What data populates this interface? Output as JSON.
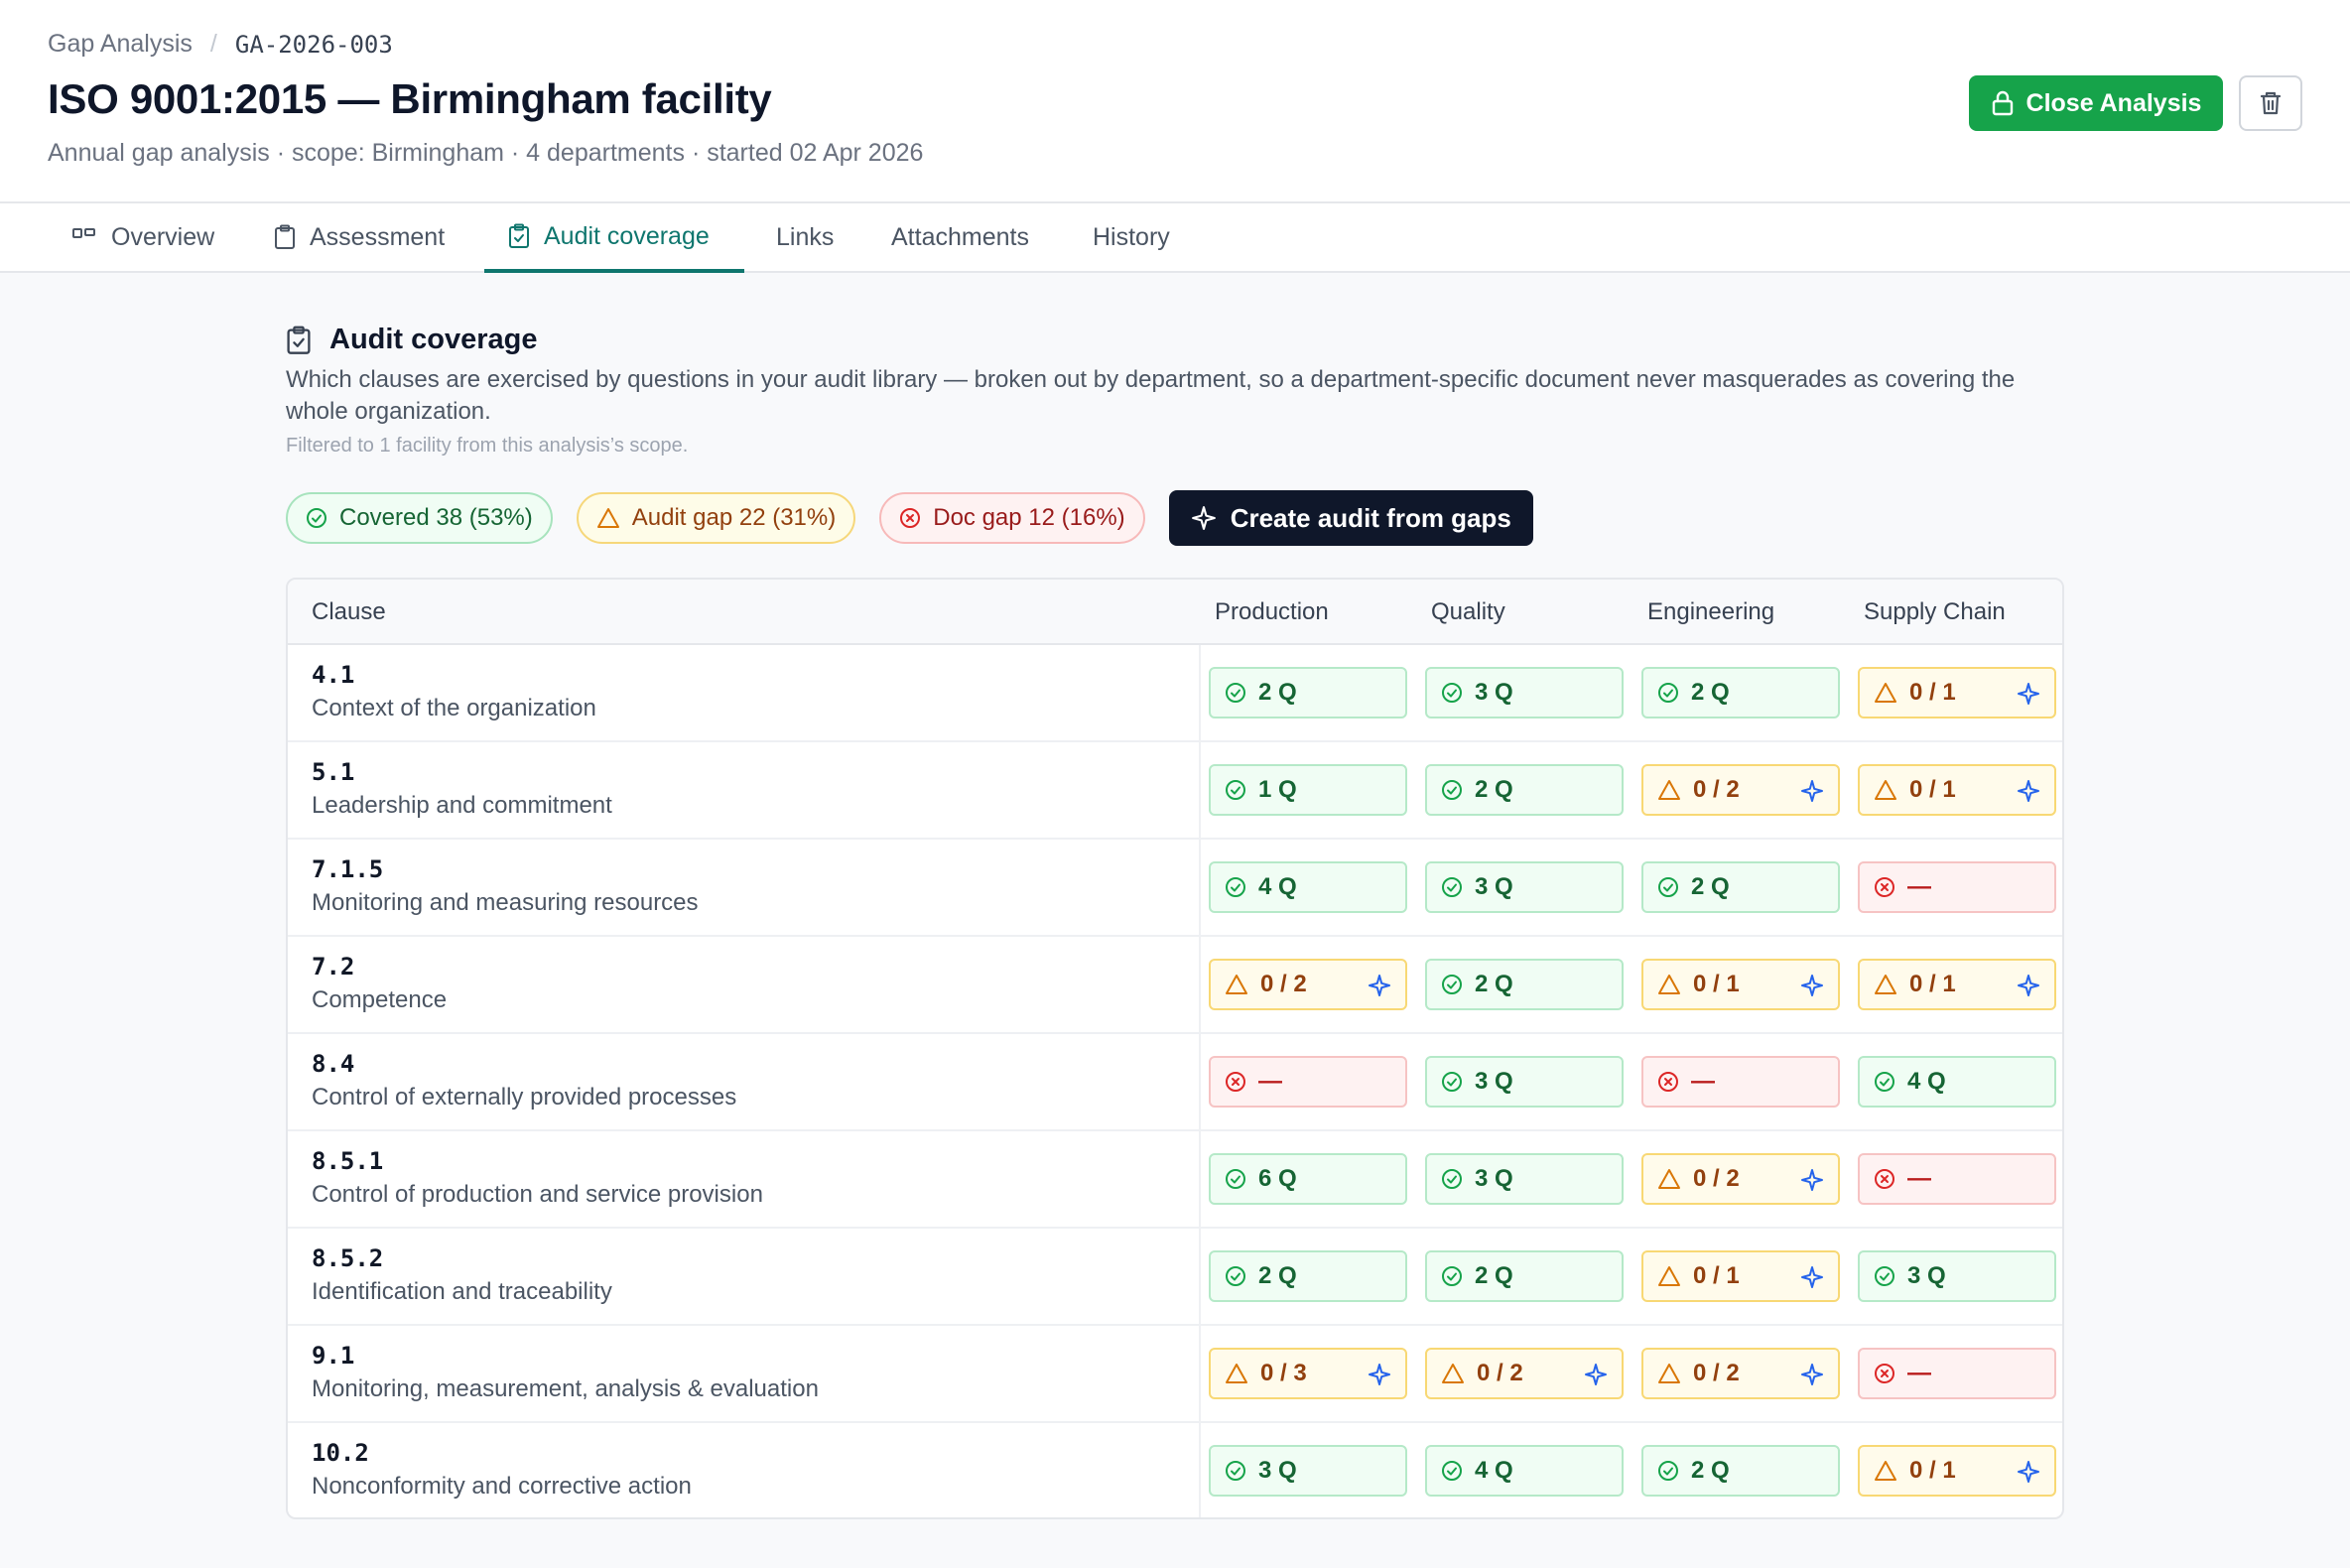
{
  "breadcrumb": {
    "parent": "Gap Analysis",
    "current": "GA-2026-003"
  },
  "header": {
    "title": "ISO 9001:2015 — Birmingham facility",
    "subtitle": "Annual gap analysis · scope: Birmingham · 4 departments · started 02 Apr 2026",
    "close_label": "Close Analysis"
  },
  "tabs": [
    {
      "label": "Overview",
      "icon": "grid-icon"
    },
    {
      "label": "Assessment",
      "icon": "clipboard-icon"
    },
    {
      "label": "Audit coverage",
      "icon": "clipboard-check-icon",
      "active": true
    },
    {
      "label": "Links"
    },
    {
      "label": "Attachments"
    },
    {
      "label": "History"
    }
  ],
  "section": {
    "title": "Audit coverage",
    "description": "Which clauses are exercised by questions in your audit library — broken out by department, so a department-specific document never masquerades as covering the whole organization.",
    "note": "Filtered to 1 facility from this analysis’s scope."
  },
  "summary": {
    "covered": "Covered 38 (53%)",
    "audit_gap": "Audit gap 22 (31%)",
    "doc_gap": "Doc gap 12 (16%)",
    "create_label": "Create audit from gaps"
  },
  "table": {
    "headers": [
      "Clause",
      "Production",
      "Quality",
      "Engineering",
      "Supply Chain"
    ],
    "rows": [
      {
        "code": "4.1",
        "name": "Context of the organization",
        "cells": [
          {
            "s": "ok",
            "t": "2 Q"
          },
          {
            "s": "ok",
            "t": "3 Q"
          },
          {
            "s": "ok",
            "t": "2 Q"
          },
          {
            "s": "warn",
            "t": "0 / 1"
          }
        ]
      },
      {
        "code": "5.1",
        "name": "Leadership and commitment",
        "cells": [
          {
            "s": "ok",
            "t": "1 Q"
          },
          {
            "s": "ok",
            "t": "2 Q"
          },
          {
            "s": "warn",
            "t": "0 / 2"
          },
          {
            "s": "warn",
            "t": "0 / 1"
          }
        ]
      },
      {
        "code": "7.1.5",
        "name": "Monitoring and measuring resources",
        "cells": [
          {
            "s": "ok",
            "t": "4 Q"
          },
          {
            "s": "ok",
            "t": "3 Q"
          },
          {
            "s": "ok",
            "t": "2 Q"
          },
          {
            "s": "err",
            "t": "—"
          }
        ]
      },
      {
        "code": "7.2",
        "name": "Competence",
        "cells": [
          {
            "s": "warn",
            "t": "0 / 2"
          },
          {
            "s": "ok",
            "t": "2 Q"
          },
          {
            "s": "warn",
            "t": "0 / 1"
          },
          {
            "s": "warn",
            "t": "0 / 1"
          }
        ]
      },
      {
        "code": "8.4",
        "name": "Control of externally provided processes",
        "cells": [
          {
            "s": "err",
            "t": "—"
          },
          {
            "s": "ok",
            "t": "3 Q"
          },
          {
            "s": "err",
            "t": "—"
          },
          {
            "s": "ok",
            "t": "4 Q"
          }
        ]
      },
      {
        "code": "8.5.1",
        "name": "Control of production and service provision",
        "cells": [
          {
            "s": "ok",
            "t": "6 Q"
          },
          {
            "s": "ok",
            "t": "3 Q"
          },
          {
            "s": "warn",
            "t": "0 / 2"
          },
          {
            "s": "err",
            "t": "—"
          }
        ]
      },
      {
        "code": "8.5.2",
        "name": "Identification and traceability",
        "cells": [
          {
            "s": "ok",
            "t": "2 Q"
          },
          {
            "s": "ok",
            "t": "2 Q"
          },
          {
            "s": "warn",
            "t": "0 / 1"
          },
          {
            "s": "ok",
            "t": "3 Q"
          }
        ]
      },
      {
        "code": "9.1",
        "name": "Monitoring, measurement, analysis & evaluation",
        "cells": [
          {
            "s": "warn",
            "t": "0 / 3"
          },
          {
            "s": "warn",
            "t": "0 / 2"
          },
          {
            "s": "warn",
            "t": "0 / 2"
          },
          {
            "s": "err",
            "t": "—"
          }
        ]
      },
      {
        "code": "10.2",
        "name": "Nonconformity and corrective action",
        "cells": [
          {
            "s": "ok",
            "t": "3 Q"
          },
          {
            "s": "ok",
            "t": "4 Q"
          },
          {
            "s": "ok",
            "t": "2 Q"
          },
          {
            "s": "warn",
            "t": "0 / 1"
          }
        ]
      }
    ]
  },
  "colors": {
    "accent": "#0f766e",
    "ok": "#16a34a",
    "warn": "#d97706",
    "err": "#dc2626",
    "spark": "#2563eb"
  }
}
